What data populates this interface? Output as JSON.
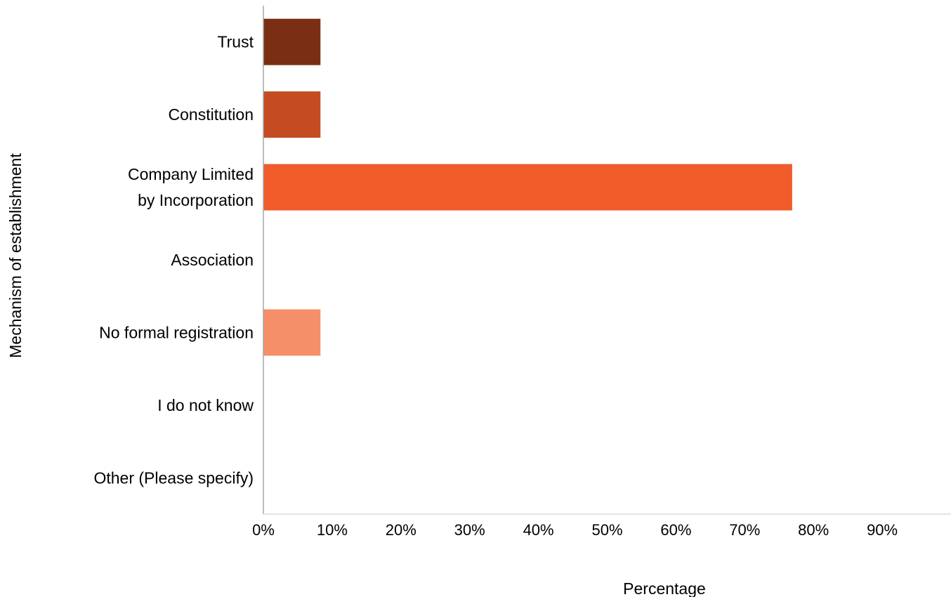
{
  "chart_data": {
    "type": "bar",
    "orientation": "horizontal",
    "categories": [
      [
        "Trust"
      ],
      [
        "Constitution"
      ],
      [
        "Company Limited",
        "by Incorporation"
      ],
      [
        "Association"
      ],
      [
        "No formal registration"
      ],
      [
        "I do not know"
      ],
      [
        "Other (Please specify)"
      ]
    ],
    "values": [
      8.3,
      8.3,
      76.9,
      0,
      8.3,
      0,
      0
    ],
    "bar_colors": [
      "#7a2e14",
      "#c44b22",
      "#f05b29",
      "#f05b29",
      "#f48f6a",
      "#f48f6a",
      "#f48f6a"
    ],
    "xlim": [
      0,
      100
    ],
    "xticks": [
      0,
      10,
      20,
      30,
      40,
      50,
      60,
      70,
      80,
      90
    ],
    "xtick_labels": [
      "0%",
      "10%",
      "20%",
      "30%",
      "40%",
      "50%",
      "60%",
      "70%",
      "80%",
      "90%"
    ],
    "xlabel": "Percentage",
    "ylabel": "Mechanism of establishment",
    "title": "",
    "grid": false,
    "legend": "none"
  }
}
